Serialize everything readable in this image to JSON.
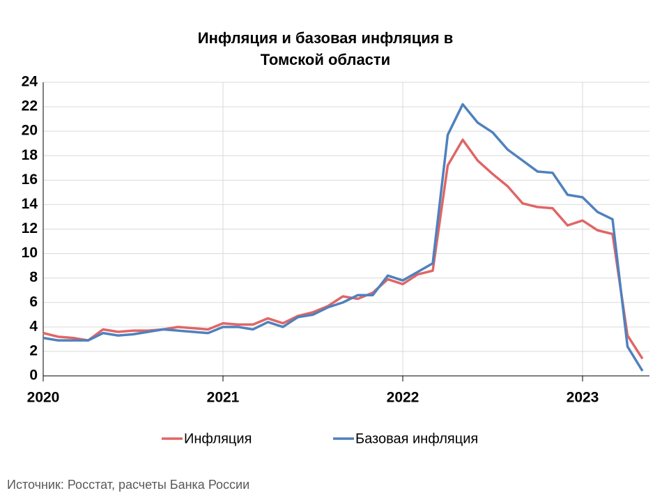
{
  "chart_data": {
    "type": "line",
    "title_lines": [
      "Инфляция и базовая инфляция в",
      "Томской области"
    ],
    "x": [
      0,
      1,
      2,
      3,
      4,
      5,
      6,
      7,
      8,
      9,
      10,
      11,
      12,
      13,
      14,
      15,
      16,
      17,
      18,
      19,
      20,
      21,
      22,
      23,
      24,
      25,
      26,
      27,
      28,
      29,
      30,
      31,
      32,
      33,
      34,
      35,
      36,
      37,
      38,
      39,
      40
    ],
    "xlim": [
      0,
      40
    ],
    "xticks": [
      {
        "value": 0,
        "label": "2020"
      },
      {
        "value": 12,
        "label": "2021"
      },
      {
        "value": 24,
        "label": "2022"
      },
      {
        "value": 36,
        "label": "2023"
      }
    ],
    "ylim": [
      0,
      24
    ],
    "yticks": [
      0,
      2,
      4,
      6,
      8,
      10,
      12,
      14,
      16,
      18,
      20,
      22,
      24
    ],
    "grid": true,
    "legend": "bottom",
    "series": [
      {
        "name": "Инфляция",
        "color": "#e06666",
        "values": [
          3.5,
          3.2,
          3.1,
          2.9,
          3.8,
          3.6,
          3.7,
          3.7,
          3.8,
          4.0,
          3.9,
          3.8,
          4.3,
          4.2,
          4.2,
          4.7,
          4.3,
          4.9,
          5.2,
          5.7,
          6.5,
          6.3,
          6.8,
          7.9,
          7.5,
          8.3,
          8.6,
          17.2,
          19.3,
          17.6,
          16.5,
          15.5,
          14.1,
          13.8,
          13.7,
          12.3,
          12.7,
          11.9,
          11.6,
          3.3,
          1.4
        ]
      },
      {
        "name": "Базовая инфляция",
        "color": "#4f81bd",
        "values": [
          3.1,
          2.9,
          2.9,
          2.9,
          3.5,
          3.3,
          3.4,
          3.6,
          3.8,
          3.7,
          3.6,
          3.5,
          4.0,
          4.0,
          3.8,
          4.4,
          4.0,
          4.8,
          5.0,
          5.6,
          6.0,
          6.6,
          6.6,
          8.2,
          7.8,
          8.5,
          9.2,
          19.7,
          22.2,
          20.7,
          19.9,
          18.5,
          17.6,
          16.7,
          16.6,
          14.8,
          14.6,
          13.4,
          12.8,
          2.4,
          0.4
        ]
      }
    ],
    "source": "Источник: Росстат, расчеты Банка России"
  }
}
